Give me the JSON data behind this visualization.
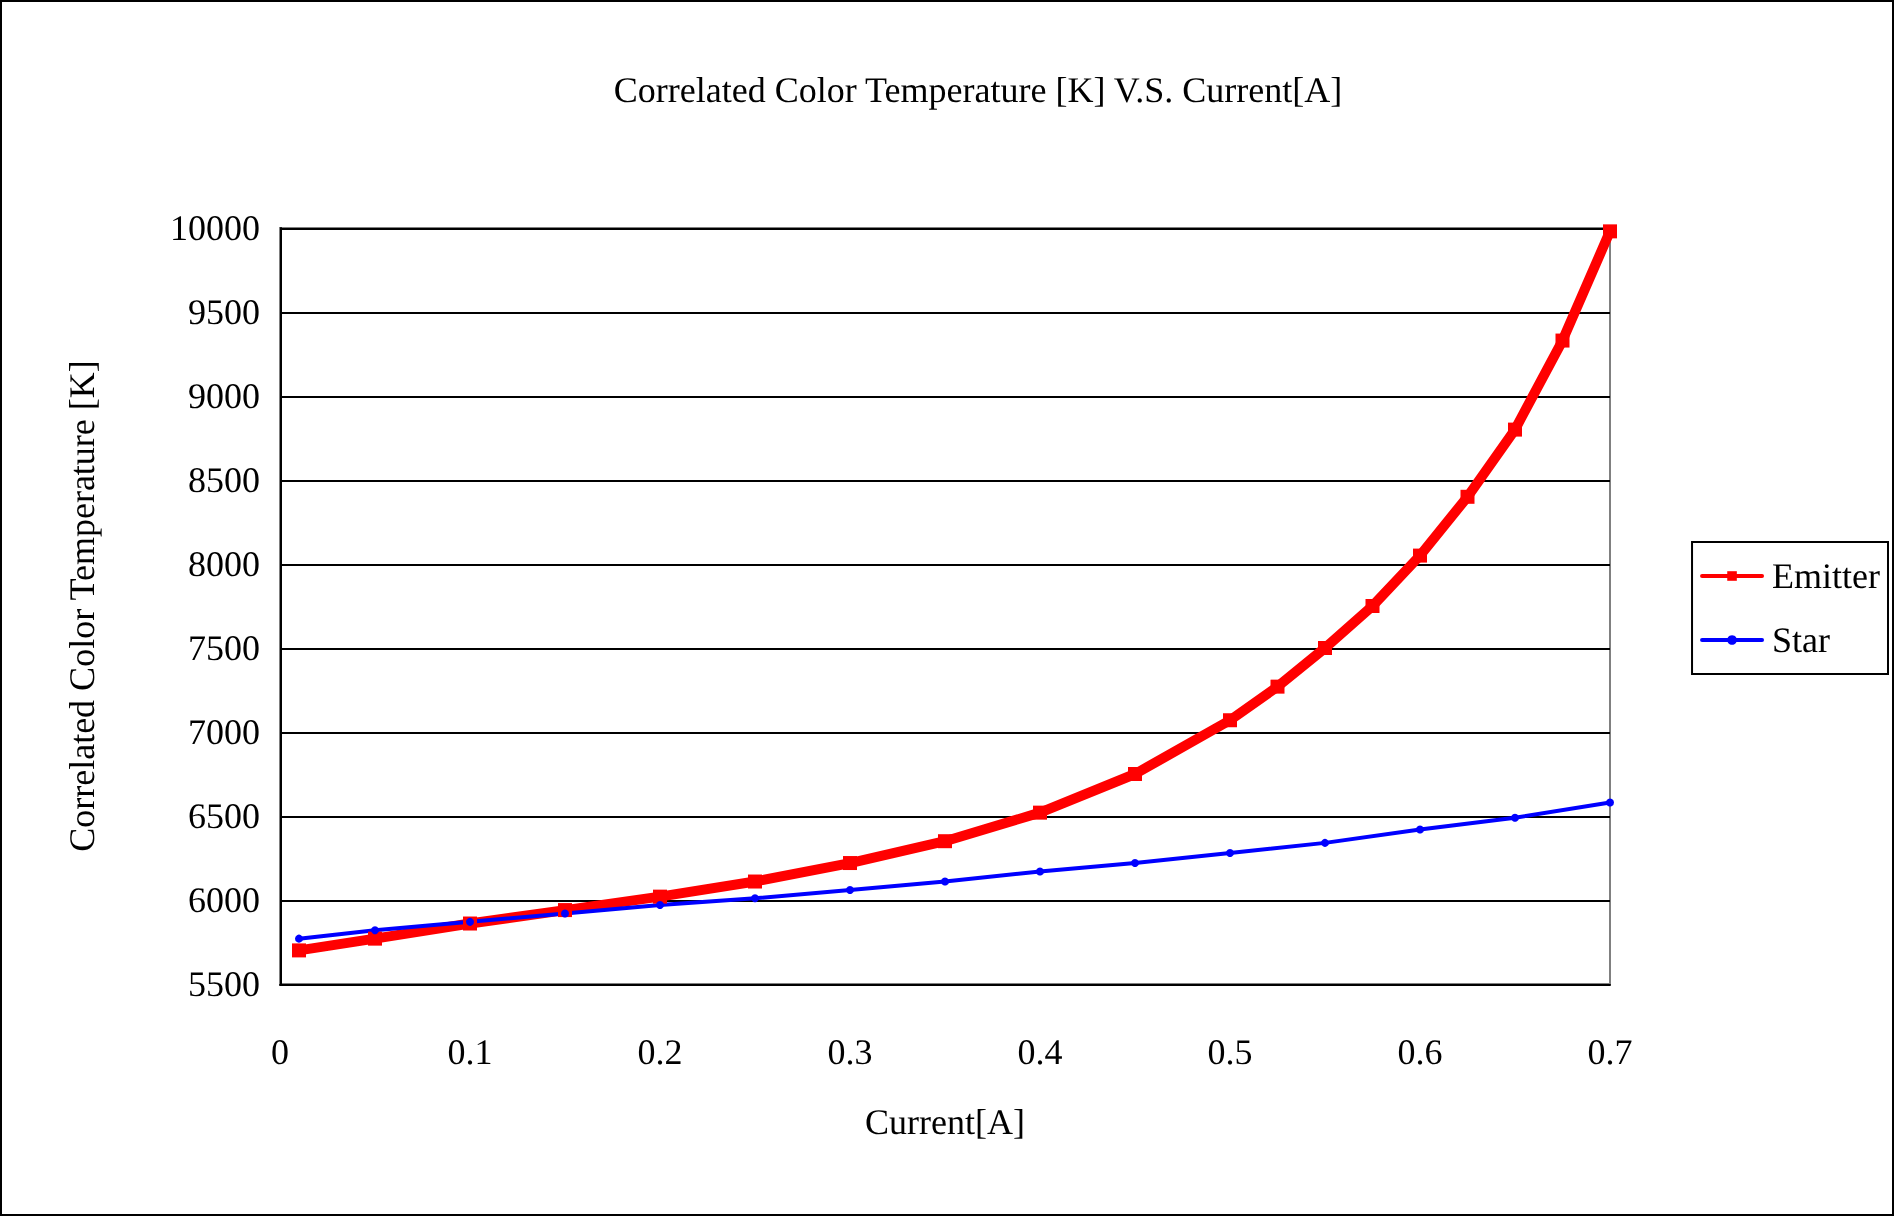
{
  "chart_data": {
    "type": "line",
    "title": "Correlated Color Temperature [K] V.S. Current[A]",
    "xlabel": "Current[A]",
    "ylabel": "Correlated Color Temperature [K]",
    "xlim": [
      0,
      0.7
    ],
    "xticks": [
      0,
      0.1,
      0.2,
      0.3,
      0.4,
      0.5,
      0.6,
      0.7
    ],
    "ylim": [
      5500,
      10000
    ],
    "yticks": [
      5500,
      6000,
      6500,
      7000,
      7500,
      8000,
      8500,
      9000,
      9500,
      10000
    ],
    "grid": "y",
    "legend": "right",
    "line_style": "solid",
    "series": [
      {
        "name": "Emitter",
        "color": "#ff0000",
        "marker": "square",
        "x": [
          0.01,
          0.05,
          0.1,
          0.15,
          0.2,
          0.25,
          0.3,
          0.35,
          0.4,
          0.45,
          0.5,
          0.525,
          0.55,
          0.575,
          0.6,
          0.625,
          0.65,
          0.675,
          0.7
        ],
        "values": [
          5700,
          5770,
          5860,
          5940,
          6020,
          6110,
          6220,
          6350,
          6520,
          6750,
          7070,
          7270,
          7500,
          7750,
          8050,
          8400,
          8800,
          9330,
          9980
        ]
      },
      {
        "name": "Star",
        "color": "#0000ff",
        "marker": "circle",
        "x": [
          0.01,
          0.05,
          0.1,
          0.15,
          0.2,
          0.25,
          0.3,
          0.35,
          0.4,
          0.45,
          0.5,
          0.55,
          0.6,
          0.65,
          0.7
        ],
        "values": [
          5770,
          5820,
          5870,
          5920,
          5970,
          6010,
          6060,
          6110,
          6170,
          6220,
          6280,
          6340,
          6420,
          6490,
          6580
        ]
      }
    ]
  }
}
